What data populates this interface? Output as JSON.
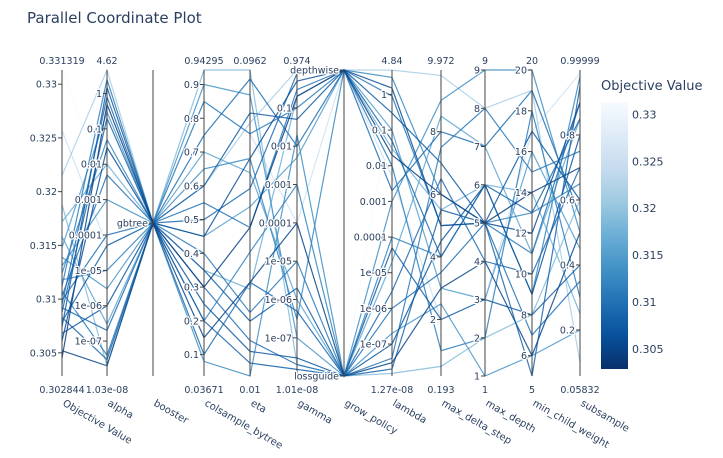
{
  "chart_data": {
    "type": "parallel_coordinates",
    "title": "Parallel Coordinate Plot",
    "colorbar": {
      "title": "Objective Value",
      "range": [
        0.302844,
        0.331319
      ],
      "ticks": [
        "0.33",
        "0.325",
        "0.32",
        "0.315",
        "0.31",
        "0.305"
      ],
      "tick_values": [
        0.33,
        0.325,
        0.32,
        0.315,
        0.31,
        0.305
      ],
      "colorscale": [
        "#08306b",
        "#08519c",
        "#2171b5",
        "#4292c6",
        "#6baed6",
        "#9ecae1",
        "#c6dbef",
        "#deebf7",
        "#f7fbff"
      ]
    },
    "dimensions": [
      {
        "name": "Objective Value",
        "scale": "linear",
        "range": [
          0.302844,
          0.331319
        ],
        "range_labels": [
          "0.331319",
          "0.302844"
        ],
        "ticks": [
          "0.33",
          "0.325",
          "0.32",
          "0.315",
          "0.31",
          "0.305"
        ],
        "tick_values": [
          0.33,
          0.325,
          0.32,
          0.315,
          0.31,
          0.305
        ]
      },
      {
        "name": "alpha",
        "scale": "log",
        "range": [
          1.03e-08,
          4.62
        ],
        "range_labels": [
          "4.62",
          "1.03e-08"
        ],
        "ticks": [
          "1",
          "0.1",
          "0.01",
          "0.001",
          "0.0001",
          "1e-05",
          "1e-06",
          "1e-07"
        ],
        "tick_values": [
          1,
          0.1,
          0.01,
          0.001,
          0.0001,
          1e-05,
          1e-06,
          1e-07
        ]
      },
      {
        "name": "booster",
        "scale": "categorical",
        "categories": [
          "gbtree"
        ],
        "ticks": [
          "gbtree"
        ]
      },
      {
        "name": "colsample_bytree",
        "scale": "linear",
        "range": [
          0.03671,
          0.94295
        ],
        "range_labels": [
          "0.94295",
          "0.03671"
        ],
        "ticks": [
          "0.9",
          "0.8",
          "0.7",
          "0.6",
          "0.5",
          "0.4",
          "0.3",
          "0.2",
          "0.1"
        ],
        "tick_values": [
          0.9,
          0.8,
          0.7,
          0.6,
          0.5,
          0.4,
          0.3,
          0.2,
          0.1
        ]
      },
      {
        "name": "eta",
        "scale": "log",
        "range": [
          0.01,
          0.0962
        ],
        "range_labels": [
          "0.0962",
          "0.01"
        ],
        "ticks": [],
        "tick_values": []
      },
      {
        "name": "gamma",
        "scale": "log",
        "range": [
          1.01e-08,
          0.974
        ],
        "range_labels": [
          "0.974",
          "1.01e-08"
        ],
        "ticks": [
          "0.1",
          "0.01",
          "0.001",
          "0.0001",
          "1e-05",
          "1e-06",
          "1e-07"
        ],
        "tick_values": [
          0.1,
          0.01,
          0.001,
          0.0001,
          1e-05,
          1e-06,
          1e-07
        ]
      },
      {
        "name": "grow_policy",
        "scale": "categorical",
        "categories": [
          "lossguide",
          "depthwise"
        ],
        "ticks": [
          "depthwise",
          "lossguide"
        ]
      },
      {
        "name": "lambda",
        "scale": "log",
        "range": [
          1.27e-08,
          4.84
        ],
        "range_labels": [
          "4.84",
          "1.27e-08"
        ],
        "ticks": [
          "1",
          "0.1",
          "0.01",
          "0.001",
          "0.0001",
          "1e-05",
          "1e-06",
          "1e-07"
        ],
        "tick_values": [
          1,
          0.1,
          0.01,
          0.001,
          0.0001,
          1e-05,
          1e-06,
          1e-07
        ]
      },
      {
        "name": "max_delta_step",
        "scale": "linear",
        "range": [
          0.193,
          9.972
        ],
        "range_labels": [
          "9.972",
          "0.193"
        ],
        "ticks": [
          "8",
          "6",
          "4",
          "2"
        ],
        "tick_values": [
          8,
          6,
          4,
          2
        ]
      },
      {
        "name": "max_depth",
        "scale": "linear",
        "range": [
          1,
          9
        ],
        "range_labels": [
          "9",
          "1"
        ],
        "ticks": [
          "9",
          "8",
          "7",
          "6",
          "5",
          "4",
          "3",
          "2",
          "1"
        ],
        "tick_values": [
          9,
          8,
          7,
          6,
          5,
          4,
          3,
          2,
          1
        ]
      },
      {
        "name": "min_child_weight",
        "scale": "linear",
        "range": [
          5,
          20
        ],
        "range_labels": [
          "20",
          "5"
        ],
        "ticks": [
          "20",
          "18",
          "16",
          "14",
          "12",
          "10",
          "8",
          "6"
        ],
        "tick_values": [
          20,
          18,
          16,
          14,
          12,
          10,
          8,
          6
        ]
      },
      {
        "name": "subsample",
        "scale": "linear",
        "range": [
          0.05832,
          0.99999
        ],
        "range_labels": [
          "0.99999",
          "0.05832"
        ],
        "ticks": [
          "0.8",
          "0.6",
          "0.4",
          "0.2"
        ],
        "tick_values": [
          0.8,
          0.6,
          0.4,
          0.2
        ]
      }
    ],
    "lines": [
      {
        "objective": 0.3045,
        "values": [
          0.3045,
          0.5,
          0,
          0.3,
          0.03,
          0.2,
          1,
          0.02,
          6,
          5,
          14,
          0.7
        ]
      },
      {
        "objective": 0.3052,
        "values": [
          0.3052,
          2e-08,
          0,
          0.15,
          0.02,
          0.0001,
          0,
          3e-08,
          3,
          4,
          6,
          0.5
        ]
      },
      {
        "objective": 0.3061,
        "values": [
          0.3061,
          0.03,
          0,
          0.45,
          0.05,
          0.5,
          1,
          1.5,
          5,
          5,
          12,
          0.9
        ]
      },
      {
        "objective": 0.3068,
        "values": [
          0.3068,
          1e-06,
          0,
          0.25,
          0.012,
          3e-08,
          0,
          1e-07,
          4.5,
          6,
          9,
          0.8
        ]
      },
      {
        "objective": 0.3074,
        "values": [
          0.3074,
          1.5,
          0,
          0.6,
          0.07,
          0.05,
          1,
          0.3,
          7,
          5,
          17,
          0.6
        ]
      },
      {
        "objective": 0.3079,
        "values": [
          0.3079,
          5e-05,
          0,
          0.35,
          0.015,
          2e-06,
          0,
          5e-05,
          2,
          3,
          8,
          0.4
        ]
      },
      {
        "objective": 0.3083,
        "values": [
          0.3083,
          3e-08,
          0,
          0.2,
          0.011,
          1.5e-08,
          0,
          2e-08,
          5.5,
          5,
          5,
          0.95
        ]
      },
      {
        "objective": 0.3088,
        "values": [
          0.3088,
          0.2,
          0,
          0.5,
          0.04,
          0.8,
          1,
          0.05,
          4,
          6,
          13,
          0.85
        ]
      },
      {
        "objective": 0.3092,
        "values": [
          0.3092,
          2e-07,
          0,
          0.1,
          0.02,
          5e-07,
          0,
          3e-06,
          6.5,
          4,
          10,
          0.7
        ]
      },
      {
        "objective": 0.3095,
        "values": [
          0.3095,
          0.8,
          0,
          0.75,
          0.09,
          0.01,
          1,
          0.002,
          8,
          7,
          19,
          0.55
        ]
      },
      {
        "objective": 0.3099,
        "values": [
          0.3099,
          0.0001,
          0,
          0.3,
          0.013,
          2e-08,
          0,
          1e-06,
          3.5,
          5,
          7,
          0.35
        ]
      },
      {
        "objective": 0.3103,
        "values": [
          0.3103,
          0.005,
          0,
          0.55,
          0.03,
          0.3,
          1,
          0.9,
          5,
          5,
          11,
          0.9
        ]
      },
      {
        "objective": 0.3107,
        "values": [
          0.3107,
          4e-08,
          0,
          0.4,
          0.016,
          1e-05,
          0,
          4e-08,
          7.5,
          8,
          15,
          0.75
        ]
      },
      {
        "objective": 0.3112,
        "values": [
          0.3112,
          2.5,
          0,
          0.85,
          0.06,
          0.1,
          1,
          0.01,
          1,
          2,
          18,
          0.3
        ]
      },
      {
        "objective": 0.3118,
        "values": [
          0.3118,
          1e-05,
          0,
          0.2,
          0.025,
          0.001,
          0,
          0.0001,
          4,
          6,
          9,
          0.98
        ]
      },
      {
        "objective": 0.3124,
        "values": [
          0.3124,
          0.05,
          0,
          0.65,
          0.05,
          3e-07,
          1,
          3,
          6,
          5,
          13,
          0.65
        ]
      },
      {
        "objective": 0.3131,
        "values": [
          0.3131,
          0.001,
          0,
          0.08,
          0.01,
          0.02,
          0,
          0.001,
          9,
          9,
          20,
          0.5
        ]
      },
      {
        "objective": 0.3139,
        "values": [
          0.3139,
          3e-06,
          0,
          0.9,
          0.08,
          1e-07,
          0,
          2e-07,
          2.5,
          1,
          6,
          0.2
        ]
      },
      {
        "objective": 0.3148,
        "values": [
          0.3148,
          0.3,
          0,
          0.45,
          0.035,
          0.005,
          1,
          0.1,
          3,
          3,
          16,
          0.45
        ]
      },
      {
        "objective": 0.3158,
        "values": [
          0.3158,
          3e-07,
          0,
          0.7,
          0.045,
          1e-06,
          0,
          2e-05,
          8.5,
          7,
          11,
          0.85
        ]
      },
      {
        "objective": 0.3172,
        "values": [
          0.3172,
          0.01,
          0,
          0.35,
          0.019,
          0.2,
          1,
          0.03,
          5.5,
          6,
          14,
          0.25
        ]
      },
      {
        "objective": 0.3188,
        "values": [
          0.3188,
          2e-08,
          0,
          0.95,
          0.0962,
          2e-08,
          0,
          1.5e-08,
          0.5,
          2,
          8,
          0.6
        ]
      },
      {
        "objective": 0.3215,
        "values": [
          0.3215,
          4.6,
          0,
          0.6,
          0.065,
          0.974,
          1,
          4.8,
          9.8,
          8,
          19,
          0.1
        ]
      },
      {
        "objective": 0.3257,
        "values": [
          0.3257,
          5e-05,
          0,
          0.85,
          0.06,
          0.0001,
          1,
          0.005,
          2,
          3,
          17,
          0.99
        ]
      },
      {
        "objective": 0.3313,
        "values": [
          0.3313,
          0.002,
          0,
          0.75,
          0.055,
          0.001,
          0,
          0.5,
          1.5,
          2,
          20,
          0.15
        ]
      }
    ]
  }
}
